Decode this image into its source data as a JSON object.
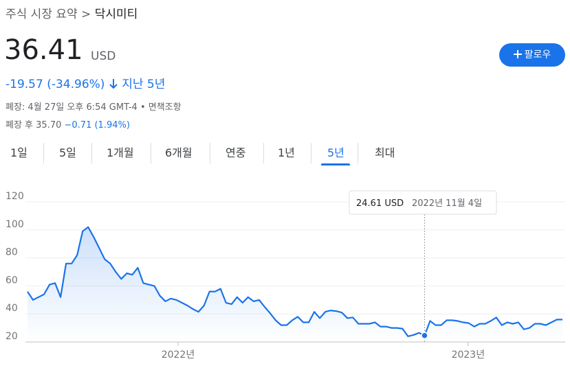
{
  "header": {
    "breadcrumb": "주식 시장 요약 >",
    "name": "닥시미티"
  },
  "quote": {
    "price": "36.41",
    "currency": "USD",
    "change": "-19.57 (-34.96%)",
    "period": "지난 5년",
    "close_info": "폐장: 4월 27일 오후 6:54 GMT-4 •",
    "disclaimer": "면책조항",
    "after_label": "폐장 후 35.70",
    "after_change": "−0.71 (1.94%)"
  },
  "follow_button": "팔로우",
  "tabs": [
    "1일",
    "5일",
    "1개월",
    "6개월",
    "연중",
    "1년",
    "5년",
    "최대"
  ],
  "selected_tab": 6,
  "chart_data": {
    "type": "line",
    "color": "#1a73e8",
    "grid": true,
    "values": [
      56,
      50,
      52,
      54,
      61,
      62,
      52,
      76,
      76,
      82,
      99,
      102,
      95,
      87,
      79,
      76,
      70,
      65,
      69,
      68,
      73,
      62,
      61,
      60,
      53,
      49,
      51,
      50,
      48,
      46,
      43.5,
      41.5,
      46,
      56,
      56,
      58,
      48,
      47,
      52,
      48,
      52,
      49,
      50,
      45,
      40.5,
      35.5,
      32,
      32,
      35.5,
      38,
      34,
      34,
      41.5,
      37,
      41.5,
      42.5,
      42,
      41,
      37,
      37.5,
      33,
      33,
      33,
      34,
      31,
      31,
      30,
      30,
      29.5,
      24,
      25,
      26.5,
      24.61,
      35,
      32,
      32,
      35.5,
      35.5,
      35,
      34,
      33.5,
      31,
      33,
      33,
      35,
      37.5,
      32,
      34,
      33,
      34,
      29,
      30,
      33,
      33,
      32,
      34,
      36,
      36
    ],
    "xlim": [
      0,
      97
    ],
    "xticks": [
      {
        "value": 27.3,
        "label": "2022년"
      },
      {
        "value": 79.9,
        "label": "2023년"
      }
    ],
    "ylim": [
      20,
      120
    ],
    "yticks": [
      20,
      40,
      60,
      80,
      100,
      120
    ],
    "tooltip": {
      "index": 72,
      "price": "24.61 USD",
      "date": "2022년 11월 4일"
    }
  }
}
